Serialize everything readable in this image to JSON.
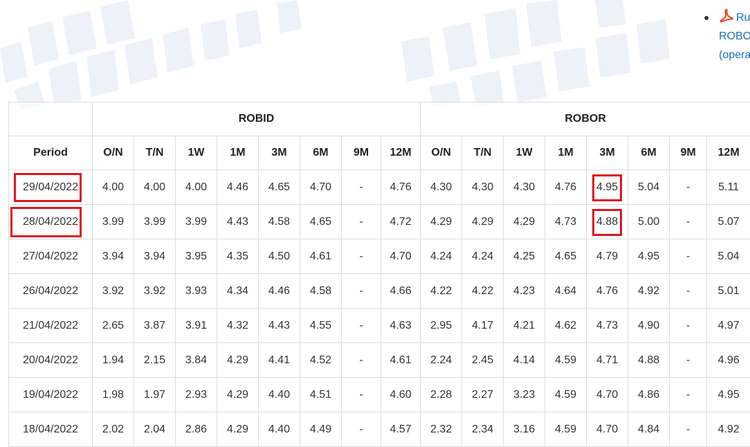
{
  "sidebar": {
    "links": [
      {
        "icon": "pdf-icon",
        "lines": [
          "Ru",
          "ROBO",
          "(opera"
        ]
      }
    ]
  },
  "table": {
    "groups": [
      "ROBID",
      "ROBOR"
    ],
    "period_header": "Period",
    "columns": [
      "O/N",
      "T/N",
      "1W",
      "1M",
      "3M",
      "6M",
      "9M",
      "12M"
    ],
    "rows": [
      {
        "period": "29/04/2022",
        "robid": [
          "4.00",
          "4.00",
          "4.00",
          "4.46",
          "4.65",
          "4.70",
          "-",
          "4.76"
        ],
        "robor": [
          "4.30",
          "4.30",
          "4.30",
          "4.76",
          "4.95",
          "5.04",
          "-",
          "5.11"
        ]
      },
      {
        "period": "28/04/2022",
        "robid": [
          "3.99",
          "3.99",
          "3.99",
          "4.43",
          "4.58",
          "4.65",
          "-",
          "4.72"
        ],
        "robor": [
          "4.29",
          "4.29",
          "4.29",
          "4.73",
          "4.88",
          "5.00",
          "-",
          "5.07"
        ]
      },
      {
        "period": "27/04/2022",
        "robid": [
          "3.94",
          "3.94",
          "3.95",
          "4.35",
          "4.50",
          "4.61",
          "-",
          "4.70"
        ],
        "robor": [
          "4.24",
          "4.24",
          "4.25",
          "4.65",
          "4.79",
          "4.95",
          "-",
          "5.04"
        ]
      },
      {
        "period": "26/04/2022",
        "robid": [
          "3.92",
          "3.92",
          "3.93",
          "4.34",
          "4.46",
          "4.58",
          "-",
          "4.66"
        ],
        "robor": [
          "4.22",
          "4.22",
          "4.23",
          "4.64",
          "4.76",
          "4.92",
          "-",
          "5.01"
        ]
      },
      {
        "period": "21/04/2022",
        "robid": [
          "2.65",
          "3.87",
          "3.91",
          "4.32",
          "4.43",
          "4.55",
          "-",
          "4.63"
        ],
        "robor": [
          "2.95",
          "4.17",
          "4.21",
          "4.62",
          "4.73",
          "4.90",
          "-",
          "4.97"
        ]
      },
      {
        "period": "20/04/2022",
        "robid": [
          "1.94",
          "2.15",
          "3.84",
          "4.29",
          "4.41",
          "4.52",
          "-",
          "4.61"
        ],
        "robor": [
          "2.24",
          "2.45",
          "4.14",
          "4.59",
          "4.71",
          "4.88",
          "-",
          "4.96"
        ]
      },
      {
        "period": "19/04/2022",
        "robid": [
          "1.98",
          "1.97",
          "2.93",
          "4.29",
          "4.40",
          "4.51",
          "-",
          "4.60"
        ],
        "robor": [
          "2.28",
          "2.27",
          "3.23",
          "4.59",
          "4.70",
          "4.86",
          "-",
          "4.95"
        ]
      },
      {
        "period": "18/04/2022",
        "robid": [
          "2.02",
          "2.04",
          "2.86",
          "4.29",
          "4.40",
          "4.49",
          "-",
          "4.57"
        ],
        "robor": [
          "2.32",
          "2.34",
          "3.16",
          "4.59",
          "4.70",
          "4.84",
          "-",
          "4.92"
        ]
      }
    ]
  },
  "colors": {
    "link": "#1a6ec2",
    "highlight": "#e0141e",
    "pdf": "#e8461e"
  }
}
